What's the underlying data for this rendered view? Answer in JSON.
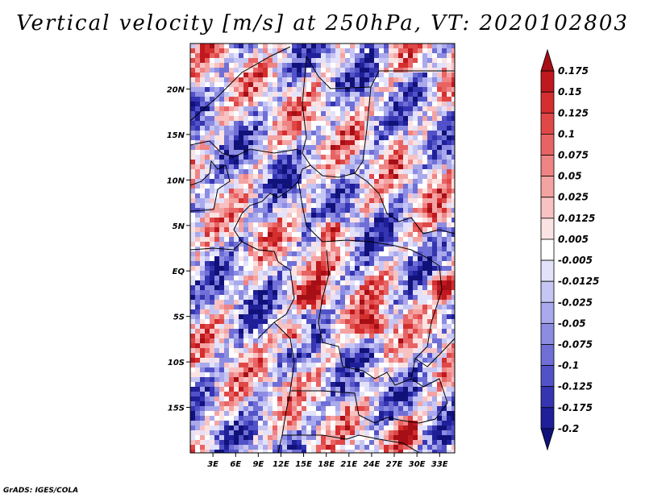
{
  "chart_data": {
    "type": "heatmap",
    "title": "Vertical velocity [m/s] at 250hPa, VT: 2020102803",
    "variable": "Vertical velocity",
    "units": "m/s",
    "level": "250hPa",
    "valid_time": "2020102803",
    "xlabel": "",
    "ylabel": "",
    "x_range": [
      0,
      35
    ],
    "y_range": [
      -20,
      25
    ],
    "x_ticks": [
      3,
      6,
      9,
      12,
      15,
      18,
      21,
      24,
      27,
      30,
      33
    ],
    "x_tick_labels": [
      "3E",
      "6E",
      "9E",
      "12E",
      "15E",
      "18E",
      "21E",
      "24E",
      "27E",
      "30E",
      "33E"
    ],
    "y_ticks": [
      20,
      15,
      10,
      5,
      0,
      -5,
      -10,
      -15
    ],
    "y_tick_labels": [
      "20N",
      "15N",
      "10N",
      "5N",
      "EQ",
      "5S",
      "10S",
      "15S"
    ],
    "colorbar": {
      "labels": [
        "0.175",
        "0.15",
        "0.125",
        "0.1",
        "0.075",
        "0.05",
        "0.025",
        "0.0125",
        "0.005",
        "-0.005",
        "-0.0125",
        "-0.025",
        "-0.05",
        "-0.075",
        "-0.1",
        "-0.125",
        "-0.175",
        "-0.2"
      ],
      "colors": [
        "#a50f15",
        "#c0181f",
        "#d42e2e",
        "#e04848",
        "#e86464",
        "#ef8484",
        "#f4a3a3",
        "#f8c2c2",
        "#fce3e3",
        "#ffffff",
        "#e2e2fb",
        "#c6c6f4",
        "#a9a9ec",
        "#8c8ce2",
        "#6f6fd6",
        "#5252c8",
        "#3535b2",
        "#1f1f99",
        "#11117a"
      ]
    },
    "map": "Central Africa with country borders",
    "grid": false
  },
  "credit": "GrADS: IGES/COLA"
}
